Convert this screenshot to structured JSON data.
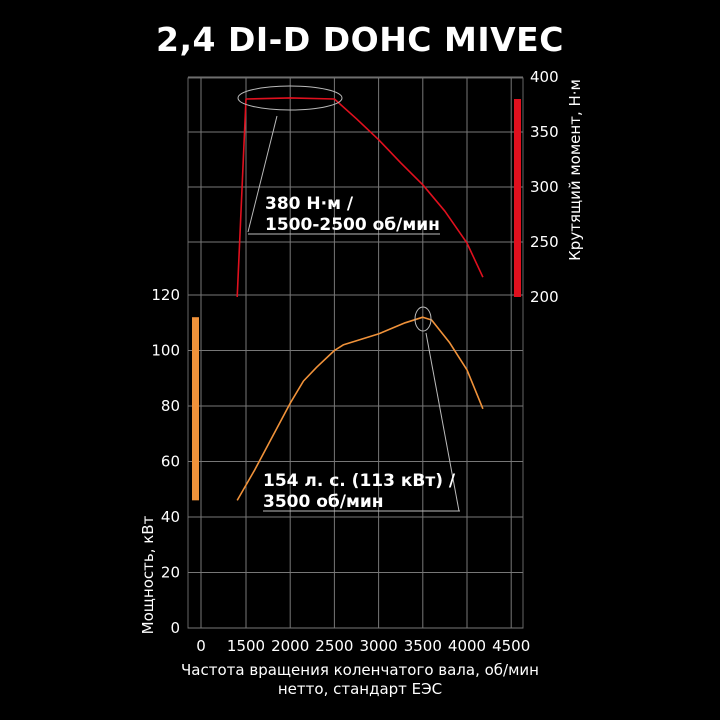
{
  "title": "2,4 DI-D DOHC MIVEC",
  "chart_data": {
    "type": "line",
    "title": "2,4 DI-D DOHC MIVEC",
    "xlabel": "Частота вращения коленчатого вала, об/мин",
    "xlabel2": "нетто, стандарт ЕЭС",
    "x_ticks": [
      "0",
      "1500",
      "2000",
      "2500",
      "3000",
      "3500",
      "4000",
      "4500"
    ],
    "y_left": {
      "label": "Мощность, кВт",
      "ticks": [
        "0",
        "20",
        "40",
        "60",
        "80",
        "100",
        "120"
      ],
      "range": [
        0,
        120
      ]
    },
    "y_right": {
      "label": "Крутящий момент, Н·м",
      "ticks": [
        "200",
        "250",
        "300",
        "350",
        "400"
      ],
      "range": [
        200,
        400
      ]
    },
    "grid": true,
    "series": [
      {
        "axis": "right",
        "color": "#e0101e",
        "x": [
          1400,
          1500,
          2000,
          2500,
          2750,
          3000,
          3250,
          3500,
          3750,
          4000,
          4180
        ],
        "y": [
          200,
          380,
          381,
          380,
          362,
          343,
          322,
          302,
          278,
          249,
          218
        ]
      },
      {
        "axis": "left",
        "color": "#f0923a",
        "x": [
          1400,
          1600,
          1800,
          2000,
          2150,
          2300,
          2500,
          2600,
          3000,
          3300,
          3500,
          3600,
          3800,
          4000,
          4180
        ],
        "y": [
          46,
          57,
          69,
          81,
          89,
          94,
          100,
          102,
          106,
          110,
          112,
          111,
          103,
          93,
          79
        ]
      }
    ],
    "range_bars": [
      {
        "axis": "right",
        "color": "#e0101e",
        "from": 200,
        "to": 380
      },
      {
        "axis": "left",
        "color": "#f0923a",
        "from": 46,
        "to": 112
      }
    ],
    "annotations": [
      {
        "line1": "380 Н·м /",
        "line2": "1500-2500 об/мин"
      },
      {
        "line1": "154 л. с. (113 кВт) /",
        "line2": "3500 об/мин"
      }
    ]
  }
}
